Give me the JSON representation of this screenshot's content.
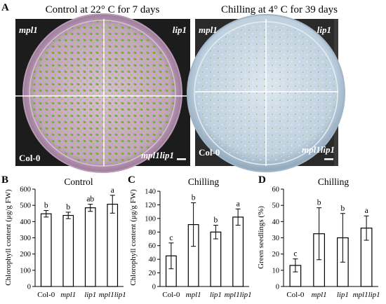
{
  "figure": {
    "panel_A": {
      "letter": "A",
      "left_title": "Control at 22° C for 7 days",
      "right_title": "Chilling at 4° C for 39 days",
      "quadrant_labels": [
        "mpl1",
        "lip1",
        "Col-0",
        "mpl1lip1"
      ],
      "colors": {
        "photo_background": "#1c1c1c",
        "control_plate": "#c9a9c7",
        "chilling_plate": "#c6d6e4",
        "seedling_green": "#7fb53c"
      }
    },
    "charts": {
      "B": {
        "letter": "B",
        "title": "Control",
        "ylabel": "Chlorophyll content (μg/g FW)"
      },
      "C": {
        "letter": "C",
        "title": "Chilling",
        "ylabel": "Chlorophyll content (μg/g FW)"
      },
      "D": {
        "letter": "D",
        "title": "Chilling",
        "ylabel": "Green seedlings (%)"
      }
    }
  },
  "chart_data": [
    {
      "panel": "B",
      "type": "bar",
      "title": "Control",
      "xlabel": "",
      "ylabel": "Chlorophyll content (μg/g FW)",
      "categories": [
        "Col-0",
        "mpl1",
        "lip1",
        "mpl1lip1"
      ],
      "values": [
        448,
        438,
        485,
        507
      ],
      "errors": [
        20,
        20,
        22,
        55
      ],
      "significance": [
        "b",
        "b",
        "ab",
        "a"
      ],
      "ylim": [
        0,
        600
      ],
      "yticks": [
        0,
        100,
        200,
        300,
        400,
        500,
        600
      ],
      "grid": false
    },
    {
      "panel": "C",
      "type": "bar",
      "title": "Chilling",
      "xlabel": "",
      "ylabel": "Chlorophyll content (μg/g FW)",
      "categories": [
        "Col-0",
        "mpl1",
        "lip1",
        "mpl1lip1"
      ],
      "values": [
        45,
        91,
        80,
        102
      ],
      "errors": [
        19,
        32,
        10,
        12
      ],
      "significance": [
        "c",
        "b",
        "b",
        "a"
      ],
      "ylim": [
        0,
        140
      ],
      "yticks": [
        0,
        20,
        40,
        60,
        80,
        100,
        120,
        140
      ],
      "grid": false
    },
    {
      "panel": "D",
      "type": "bar",
      "title": "Chilling",
      "xlabel": "",
      "ylabel": "Green seedlings (%)",
      "categories": [
        "Col-0",
        "mpl1",
        "lip1",
        "mpl1lip1"
      ],
      "values": [
        13,
        32.5,
        30,
        36
      ],
      "errors": [
        4,
        16,
        15,
        7.5
      ],
      "significance": [
        "c",
        "b",
        "b",
        "a"
      ],
      "ylim": [
        0,
        60
      ],
      "yticks": [
        0,
        10,
        20,
        30,
        40,
        50,
        60
      ],
      "grid": false
    }
  ]
}
